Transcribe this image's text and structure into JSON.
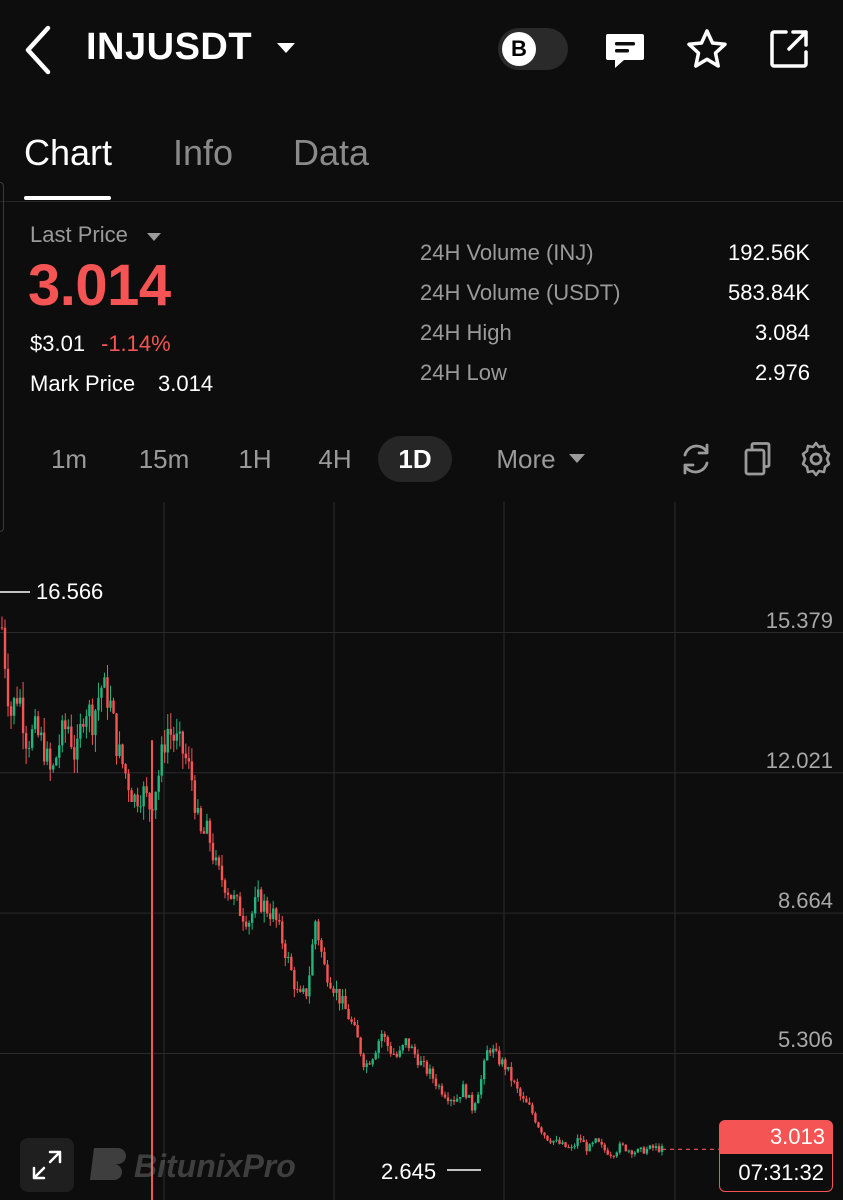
{
  "header": {
    "symbol": "INJUSDT",
    "toggle_letter": "B",
    "icons": [
      "back-arrow-icon",
      "caret-down-icon",
      "chat-icon",
      "star-icon",
      "share-icon"
    ]
  },
  "tabs": [
    {
      "label": "Chart",
      "active": true
    },
    {
      "label": "Info",
      "active": false
    },
    {
      "label": "Data",
      "active": false
    }
  ],
  "price": {
    "last_price_label": "Last Price",
    "last_price": "3.014",
    "usd_price": "$3.01",
    "change": "-1.14%",
    "mark_label": "Mark Price",
    "mark_value": "3.014"
  },
  "stats": [
    {
      "label": "24H Volume (INJ)",
      "value": "192.56K"
    },
    {
      "label": "24H Volume (USDT)",
      "value": "583.84K"
    },
    {
      "label": "24H High",
      "value": "3.084"
    },
    {
      "label": "24H Low",
      "value": "2.976"
    }
  ],
  "timeframes": [
    "1m",
    "15m",
    "1H",
    "4H",
    "1D"
  ],
  "active_timeframe": "1D",
  "more_label": "More",
  "tools": [
    "refresh-icon",
    "copy-icon",
    "settings-icon"
  ],
  "colors": {
    "up": "#24b47e",
    "down": "#f45454",
    "background": "#0d0d0d"
  },
  "chart_data": {
    "type": "candlestick",
    "y_ticks": [
      "15.379",
      "12.021",
      "8.664",
      "5.306"
    ],
    "ylim": [
      1.8,
      18.5
    ],
    "high_marker": "16.566",
    "low_marker": "2.645",
    "last_price_tag": "3.013",
    "countdown": "07:31:32",
    "grid": true,
    "series": [
      {
        "values": [
          15.5,
          13.4,
          14.0,
          12.8,
          13.0,
          12.7,
          11.9,
          12.8,
          13.2,
          12.3,
          13.7,
          13.3,
          14.1,
          13.8,
          12.6,
          12.0,
          11.4,
          11.6,
          11.2,
          12.0,
          13.1,
          12.8,
          12.5,
          11.9,
          10.5,
          10.6,
          9.7,
          9.4,
          9.0,
          8.7,
          8.5,
          9.0,
          8.8,
          8.6,
          8.0,
          7.3,
          6.6,
          6.8,
          8.5,
          7.4,
          7.0,
          6.6,
          6.2,
          5.7,
          5.0,
          5.3,
          5.8,
          5.4,
          5.2,
          5.6,
          5.3,
          5.0,
          4.8,
          4.5,
          4.3,
          4.2,
          4.5,
          4.0,
          4.6,
          5.5,
          5.2,
          5.0,
          4.6,
          4.2,
          4.0,
          3.6,
          3.3,
          3.2,
          3.1,
          3.0,
          3.3,
          3.0,
          3.2,
          3.0,
          2.9,
          3.1,
          3.0,
          2.95,
          3.0,
          3.05,
          3.013
        ]
      }
    ]
  },
  "watermark": "BitunixPro"
}
